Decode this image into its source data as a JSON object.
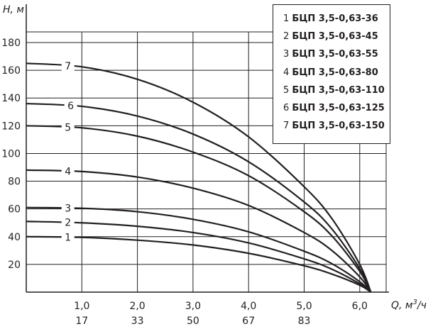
{
  "chart_data": {
    "type": "line",
    "ylabel": "H, м",
    "xlabel": "Q, м³/ч",
    "xlabel_main": "Q, м",
    "xlabel_sup": "3",
    "xlabel_tail": "/ч",
    "ylim": [
      0,
      200
    ],
    "xlim": [
      0,
      7
    ],
    "yticks": [
      20,
      40,
      60,
      80,
      100,
      120,
      140,
      160,
      180
    ],
    "xticks": [
      1.0,
      2.0,
      3.0,
      4.0,
      5.0,
      6.0
    ],
    "xtick_labels": [
      "1,0",
      "2,0",
      "3,0",
      "4,0",
      "5,0",
      "6,0"
    ],
    "xtick_labels_secondary": [
      "17",
      "33",
      "50",
      "67",
      "83"
    ],
    "x_end": 6.2,
    "series": [
      {
        "name": "БЦП 3,5-0,63-36",
        "label": "1",
        "x": [
          0,
          1,
          2,
          3,
          4,
          5,
          5.5,
          6.0,
          6.2
        ],
        "values": [
          40,
          39.5,
          37.5,
          34,
          28,
          19,
          13,
          5,
          0
        ]
      },
      {
        "name": "БЦП 3,5-0,63-45",
        "label": "2",
        "x": [
          0,
          1,
          2,
          3,
          4,
          5,
          5.5,
          6.0,
          6.2
        ],
        "values": [
          51,
          50,
          47.5,
          43,
          35.5,
          24,
          16.5,
          6,
          0
        ]
      },
      {
        "name": "БЦП 3,5-0,63-55",
        "label": "3",
        "x": [
          0,
          1,
          2,
          3,
          4,
          5,
          5.5,
          6.0,
          6.2
        ],
        "values": [
          61,
          60.5,
          58,
          52.5,
          43.5,
          29.5,
          20.5,
          7.5,
          0
        ]
      },
      {
        "name": "БЦП 3,5-0,63-80",
        "label": "4",
        "x": [
          0,
          1,
          2,
          3,
          4,
          5,
          5.5,
          6.0,
          6.2
        ],
        "values": [
          88,
          87,
          83,
          75,
          62.5,
          43,
          30,
          11,
          0
        ]
      },
      {
        "name": "БЦП 3,5-0,63-110",
        "label": "5",
        "x": [
          0,
          1,
          2,
          3,
          4,
          5,
          5.5,
          6.0,
          6.2
        ],
        "values": [
          120,
          118.5,
          112.5,
          101,
          84,
          58,
          40.5,
          15,
          0
        ]
      },
      {
        "name": "БЦП 3,5-0,63-125",
        "label": "6",
        "x": [
          0,
          1,
          2,
          3,
          4,
          5,
          5.5,
          6.0,
          6.2
        ],
        "values": [
          136,
          134,
          127,
          114,
          94,
          65,
          45.5,
          17,
          0
        ]
      },
      {
        "name": "БЦП 3,5-0,63-150",
        "label": "7",
        "x": [
          0,
          1,
          2,
          3,
          4,
          5,
          5.5,
          6.0,
          6.2
        ],
        "values": [
          165,
          162.5,
          153.5,
          137,
          112,
          76,
          53,
          20,
          0
        ]
      }
    ],
    "series_label_x": [
      0.75,
      0.75,
      0.75,
      0.75,
      0.75,
      0.8,
      0.75
    ],
    "grid": true,
    "legend_position": "top-right"
  },
  "colors": {
    "line": "#231f20",
    "grid": "#231f20",
    "background": "#ffffff"
  }
}
